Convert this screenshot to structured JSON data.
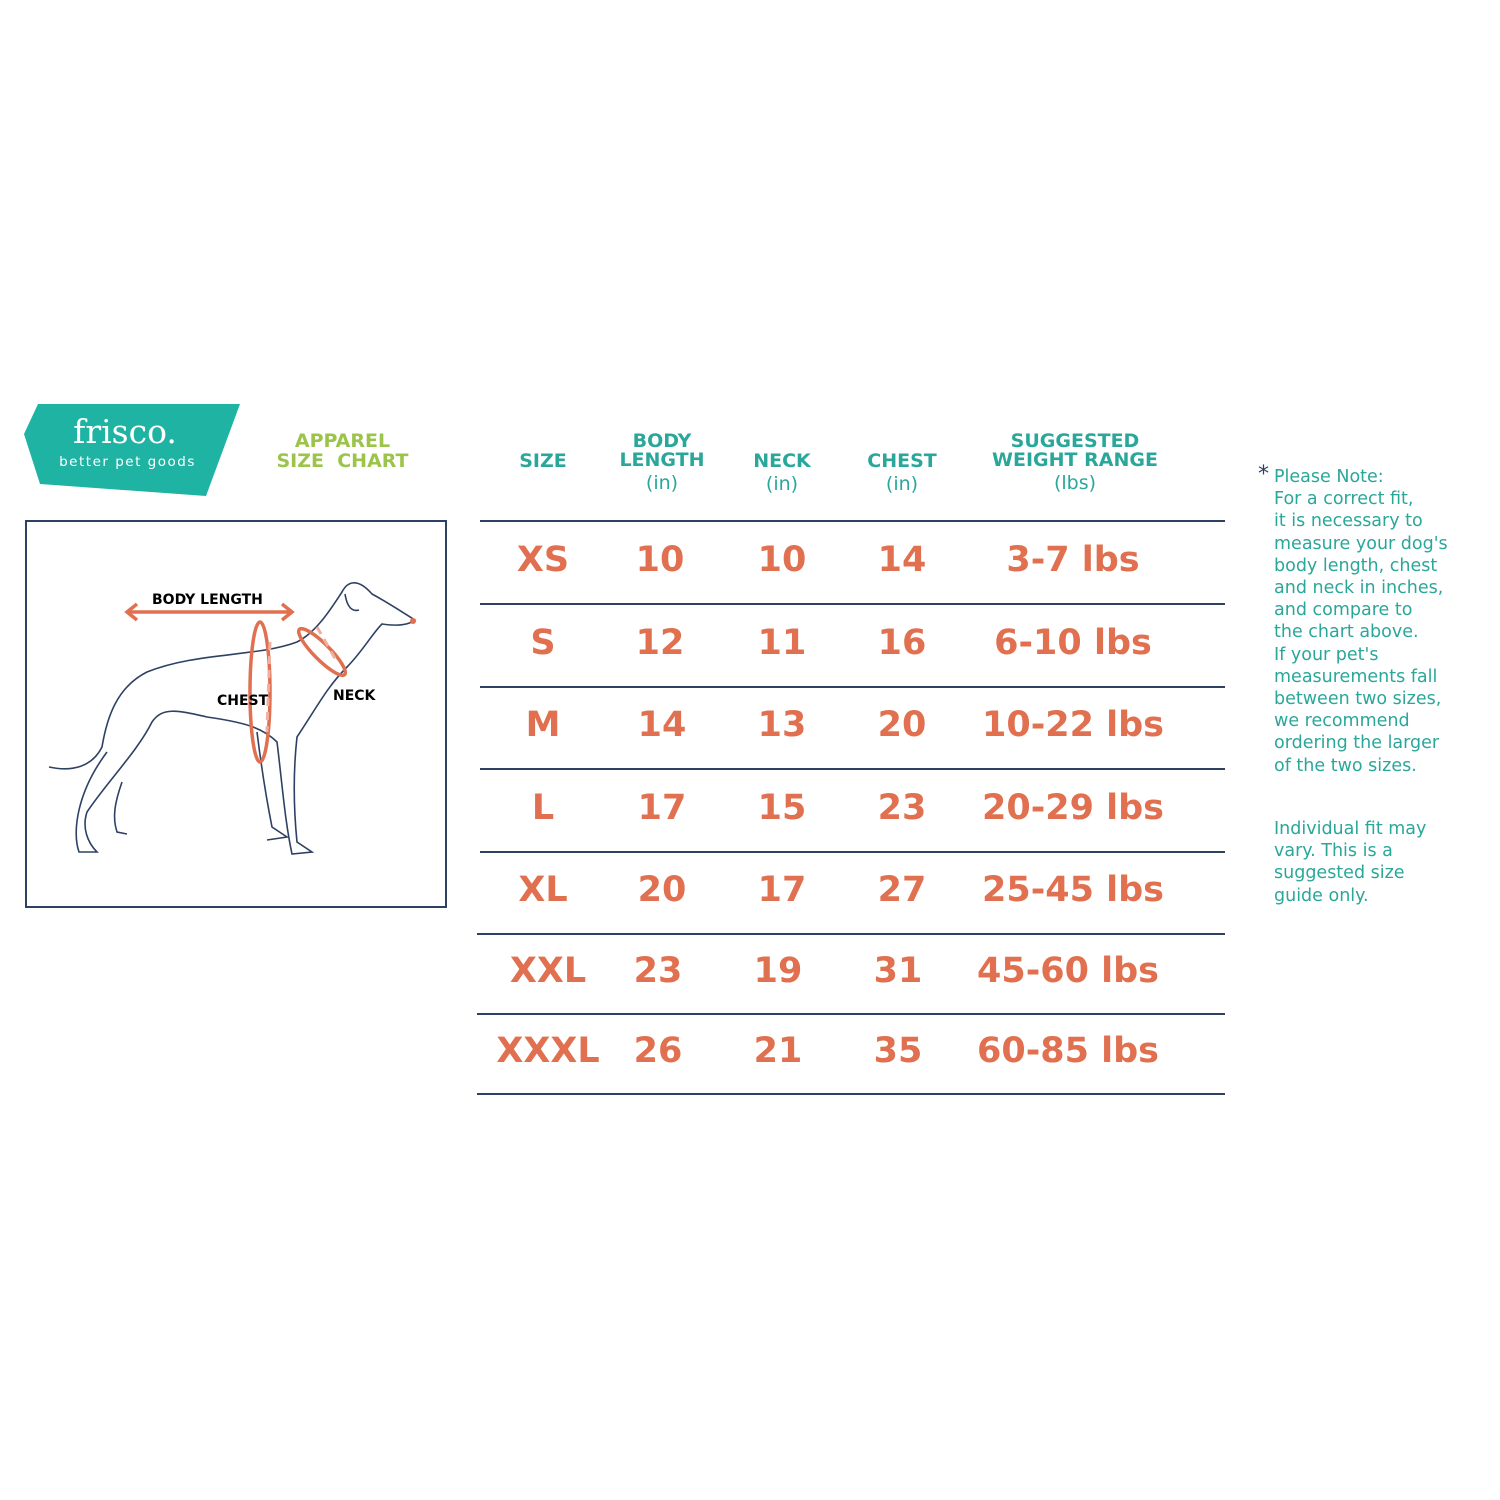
{
  "brand": {
    "name": "frisco.",
    "tagline": "better pet goods",
    "logo_color": "#1fb3a3"
  },
  "title": {
    "line1": "APPAREL",
    "line2": "SIZE  CHART",
    "color": "#9cc44a"
  },
  "diagram": {
    "labels": {
      "body_length": "BODY LENGTH",
      "chest": "CHEST",
      "neck": "NECK"
    },
    "accent": "#e0704f"
  },
  "table": {
    "headers": [
      {
        "label": "SIZE",
        "unit": ""
      },
      {
        "label": "BODY LENGTH",
        "label_lines": [
          "BODY",
          "LENGTH"
        ],
        "unit": "(in)"
      },
      {
        "label": "NECK",
        "unit": "(in)"
      },
      {
        "label": "CHEST",
        "unit": "(in)"
      },
      {
        "label": "SUGGESTED WEIGHT RANGE",
        "label_lines": [
          "SUGGESTED",
          "WEIGHT RANGE"
        ],
        "unit": "(lbs)"
      }
    ],
    "rows": [
      [
        "XS",
        "10",
        "10",
        "14",
        "3-7 lbs"
      ],
      [
        "S",
        "12",
        "11",
        "16",
        "6-10 lbs"
      ],
      [
        "M",
        "14",
        "13",
        "20",
        "10-22 lbs"
      ],
      [
        "L",
        "17",
        "15",
        "23",
        "20-29 lbs"
      ],
      [
        "XL",
        "20",
        "17",
        "27",
        "25-45 lbs"
      ],
      [
        "XXL",
        "23",
        "19",
        "31",
        "45-60 lbs"
      ],
      [
        "XXXL",
        "26",
        "21",
        "35",
        "60-85 lbs"
      ]
    ],
    "header_color": "#2aa79a",
    "value_color": "#e0704f",
    "rule_color": "#2e4163"
  },
  "note": {
    "asterisk": "*",
    "lines": [
      "Please Note:",
      "For a correct fit,",
      "it is necessary to",
      "measure your dog's",
      "body length, chest",
      "and neck in inches,",
      "and compare to",
      "the chart above.",
      "If your pet's",
      "measurements fall",
      "between two sizes,",
      "we recommend",
      "ordering the larger",
      "of the two sizes."
    ],
    "disclaimer": [
      "Individual fit may",
      "vary. This is a",
      "suggested size",
      "guide only."
    ]
  }
}
